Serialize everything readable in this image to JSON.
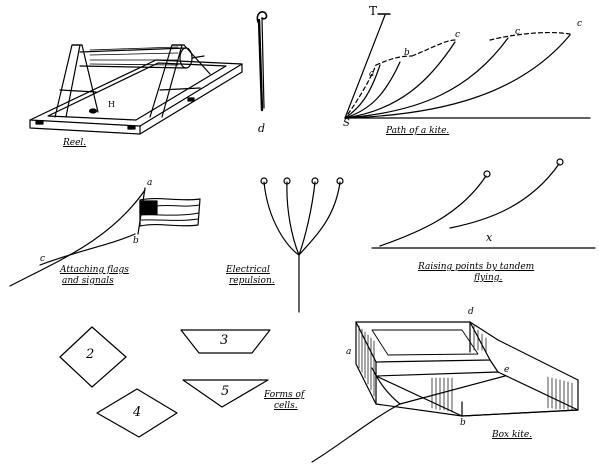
{
  "captions": {
    "reel": "Reel.",
    "path": "Path of a kite.",
    "flags_1": "Attaching flags",
    "flags_2": "and signals",
    "electrical_1": "Electrical",
    "electrical_2": "repulsion.",
    "tandem_1": "Raising points by tandem",
    "tandem_2": "flying.",
    "forms_1": "Forms of",
    "forms_2": "cells.",
    "box": "Box kite."
  },
  "labels": {
    "reel_h": "H",
    "pin_d": "d",
    "path_t": "T",
    "path_s": "S",
    "path_a": "a",
    "path_b": "b",
    "path_c1": "c",
    "path_c2": "c",
    "path_c3": "c",
    "flag_a": "a",
    "flag_b": "b",
    "flag_c": "c",
    "tandem_x": "x",
    "box_a": "a",
    "box_b": "b",
    "box_d": "d",
    "box_e": "e",
    "cell_2": "2",
    "cell_3": "3",
    "cell_4": "4",
    "cell_5": "5"
  }
}
